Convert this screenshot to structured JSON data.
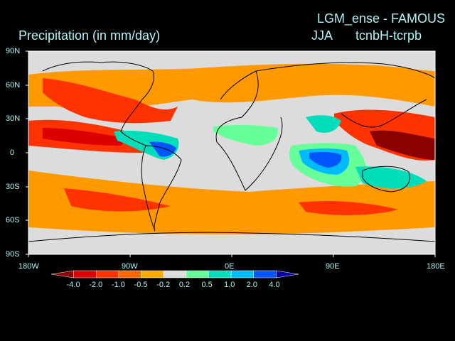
{
  "titles": {
    "left": "Precipitation (in mm/day)",
    "right_line1": "LGM_ense - FAMOUS",
    "right_line2a": "JJA",
    "right_line2b": "tcnbH-tcrpb"
  },
  "lat_labels": [
    "90N",
    "60N",
    "30N",
    "0",
    "30S",
    "60S",
    "90S"
  ],
  "lon_labels": [
    "180W",
    "90W",
    "0E",
    "90E",
    "180E"
  ],
  "colorbar": {
    "labels": [
      "-4.0",
      "-2.0",
      "-1.0",
      "-0.5",
      "-0.2",
      "0.2",
      "0.5",
      "1.0",
      "2.0",
      "4.0"
    ],
    "colors": [
      "#8b0000",
      "#dd0000",
      "#ff3300",
      "#ff6600",
      "#ffaa00",
      "#dcdcdc",
      "#66ff99",
      "#00ddbb",
      "#00bbff",
      "#0055ff",
      "#0000aa"
    ]
  }
}
